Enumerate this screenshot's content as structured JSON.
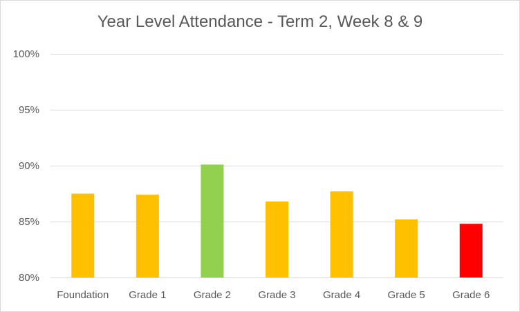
{
  "chart_data": {
    "type": "bar",
    "title": "Year Level Attendance - Term 2, Week 8 & 9",
    "xlabel": "",
    "ylabel": "",
    "categories": [
      "Foundation",
      "Grade 1",
      "Grade 2",
      "Grade 3",
      "Grade 4",
      "Grade 5",
      "Grade 6"
    ],
    "values": [
      87.5,
      87.4,
      90.1,
      86.8,
      87.7,
      85.2,
      84.8
    ],
    "bar_colors": [
      "#FFC000",
      "#FFC000",
      "#92D050",
      "#FFC000",
      "#FFC000",
      "#FFC000",
      "#FF0000"
    ],
    "ylim": [
      80,
      100
    ],
    "y_ticks": [
      80,
      85,
      90,
      95,
      100
    ],
    "y_tick_labels": [
      "80%",
      "85%",
      "90%",
      "95%",
      "100%"
    ],
    "grid": true,
    "legend": "none"
  }
}
